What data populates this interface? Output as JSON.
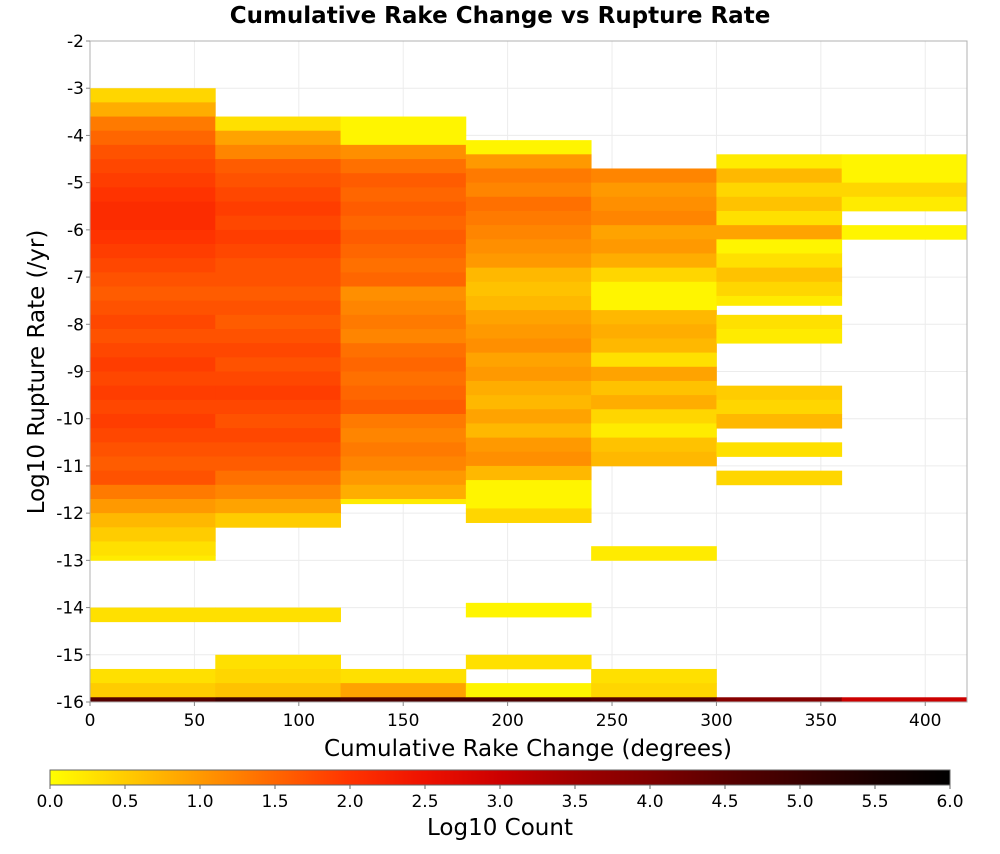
{
  "chart_data": {
    "type": "heatmap",
    "title": "Cumulative Rake Change vs Rupture Rate",
    "xlabel": "Cumulative Rake Change (degrees)",
    "ylabel": "Log10 Rupture Rate (/yr)",
    "xlim": [
      0,
      420
    ],
    "ylim": [
      -16,
      -2
    ],
    "x_ticks": [
      "0",
      "50",
      "100",
      "150",
      "200",
      "250",
      "300",
      "350",
      "400"
    ],
    "y_ticks": [
      "-2",
      "-3",
      "-4",
      "-5",
      "-6",
      "-7",
      "-8",
      "-9",
      "-10",
      "-11",
      "-12",
      "-13",
      "-14",
      "-15",
      "-16"
    ],
    "grid": true,
    "x_bin_width": 60,
    "y_bin_height": 0.29,
    "colorbar": {
      "label": "Log10 Count",
      "range": [
        0,
        6
      ],
      "ticks": [
        "0.0",
        "0.5",
        "1.0",
        "1.5",
        "2.0",
        "2.5",
        "3.0",
        "3.5",
        "4.0",
        "4.5",
        "5.0",
        "5.5",
        "6.0"
      ],
      "stops": [
        "#ffff00",
        "#ffcc00",
        "#ff9900",
        "#ff6600",
        "#ff3300",
        "#ee1100",
        "#cc0000",
        "#a00000",
        "#800000",
        "#5a0000",
        "#3a0000",
        "#1a0000",
        "#000000"
      ]
    },
    "columns": [
      {
        "x": [
          0,
          60
        ],
        "cells": [
          [
            -3.3,
            -3.0,
            0.4
          ],
          [
            -3.6,
            -3.3,
            0.8
          ],
          [
            -3.9,
            -3.6,
            1.3
          ],
          [
            -4.2,
            -3.9,
            1.5
          ],
          [
            -4.5,
            -4.2,
            1.7
          ],
          [
            -4.8,
            -4.5,
            1.8
          ],
          [
            -5.1,
            -4.8,
            1.9
          ],
          [
            -5.4,
            -5.1,
            2.0
          ],
          [
            -5.7,
            -5.4,
            2.1
          ],
          [
            -6.0,
            -5.7,
            2.1
          ],
          [
            -6.3,
            -6.0,
            2.0
          ],
          [
            -6.6,
            -6.3,
            1.9
          ],
          [
            -6.9,
            -6.6,
            1.8
          ],
          [
            -7.2,
            -6.9,
            1.7
          ],
          [
            -7.5,
            -7.2,
            1.6
          ],
          [
            -7.8,
            -7.5,
            1.7
          ],
          [
            -8.1,
            -7.8,
            1.8
          ],
          [
            -8.4,
            -8.1,
            1.7
          ],
          [
            -8.7,
            -8.4,
            1.8
          ],
          [
            -9.0,
            -8.7,
            1.9
          ],
          [
            -9.3,
            -9.0,
            1.8
          ],
          [
            -9.6,
            -9.3,
            1.9
          ],
          [
            -9.9,
            -9.6,
            1.8
          ],
          [
            -10.2,
            -9.9,
            1.9
          ],
          [
            -10.5,
            -10.2,
            1.8
          ],
          [
            -10.8,
            -10.5,
            1.7
          ],
          [
            -11.1,
            -10.8,
            1.6
          ],
          [
            -11.4,
            -11.1,
            1.7
          ],
          [
            -11.7,
            -11.4,
            1.3
          ],
          [
            -12.0,
            -11.7,
            1.0
          ],
          [
            -12.3,
            -12.0,
            0.7
          ],
          [
            -12.6,
            -12.3,
            0.5
          ],
          [
            -12.9,
            -12.6,
            0.3
          ],
          [
            -13.0,
            -12.9,
            0.2
          ],
          [
            -14.3,
            -14.0,
            0.3
          ],
          [
            -15.6,
            -15.3,
            0.3
          ],
          [
            -15.9,
            -15.6,
            0.5
          ],
          [
            -16.0,
            -15.9,
            4.6
          ]
        ]
      },
      {
        "x": [
          60,
          120
        ],
        "cells": [
          [
            -3.9,
            -3.6,
            0.3
          ],
          [
            -4.2,
            -3.9,
            0.9
          ],
          [
            -4.5,
            -4.2,
            1.2
          ],
          [
            -4.8,
            -4.5,
            1.6
          ],
          [
            -5.1,
            -4.8,
            1.7
          ],
          [
            -5.4,
            -5.1,
            1.8
          ],
          [
            -5.7,
            -5.4,
            1.9
          ],
          [
            -6.0,
            -5.7,
            1.8
          ],
          [
            -6.3,
            -6.0,
            1.9
          ],
          [
            -6.6,
            -6.3,
            1.8
          ],
          [
            -6.9,
            -6.6,
            1.7
          ],
          [
            -7.2,
            -6.9,
            1.7
          ],
          [
            -7.5,
            -7.2,
            1.6
          ],
          [
            -7.8,
            -7.5,
            1.7
          ],
          [
            -8.1,
            -7.8,
            1.6
          ],
          [
            -8.4,
            -8.1,
            1.7
          ],
          [
            -8.7,
            -8.4,
            1.8
          ],
          [
            -9.0,
            -8.7,
            1.7
          ],
          [
            -9.3,
            -9.0,
            1.8
          ],
          [
            -9.6,
            -9.3,
            1.9
          ],
          [
            -9.9,
            -9.6,
            1.8
          ],
          [
            -10.2,
            -9.9,
            1.7
          ],
          [
            -10.5,
            -10.2,
            1.8
          ],
          [
            -10.8,
            -10.5,
            1.7
          ],
          [
            -11.1,
            -10.8,
            1.6
          ],
          [
            -11.4,
            -11.1,
            1.4
          ],
          [
            -11.7,
            -11.4,
            1.2
          ],
          [
            -12.0,
            -11.7,
            0.9
          ],
          [
            -12.3,
            -12.0,
            0.5
          ],
          [
            -14.3,
            -14.0,
            0.3
          ],
          [
            -15.3,
            -15.0,
            0.3
          ],
          [
            -15.6,
            -15.3,
            0.4
          ],
          [
            -15.9,
            -15.6,
            0.6
          ],
          [
            -16.0,
            -15.9,
            4.9
          ]
        ]
      },
      {
        "x": [
          120,
          180
        ],
        "cells": [
          [
            -3.9,
            -3.6,
            0.1
          ],
          [
            -4.2,
            -3.9,
            0.1
          ],
          [
            -4.5,
            -4.2,
            1.1
          ],
          [
            -4.8,
            -4.5,
            1.4
          ],
          [
            -5.1,
            -4.8,
            1.6
          ],
          [
            -5.4,
            -5.1,
            1.5
          ],
          [
            -5.7,
            -5.4,
            1.6
          ],
          [
            -6.0,
            -5.7,
            1.5
          ],
          [
            -6.3,
            -6.0,
            1.6
          ],
          [
            -6.6,
            -6.3,
            1.5
          ],
          [
            -6.9,
            -6.6,
            1.4
          ],
          [
            -7.2,
            -6.9,
            1.5
          ],
          [
            -7.5,
            -7.2,
            1.1
          ],
          [
            -7.8,
            -7.5,
            1.2
          ],
          [
            -8.1,
            -7.8,
            1.3
          ],
          [
            -8.4,
            -8.1,
            1.2
          ],
          [
            -8.7,
            -8.4,
            1.4
          ],
          [
            -9.0,
            -8.7,
            1.5
          ],
          [
            -9.3,
            -9.0,
            1.4
          ],
          [
            -9.6,
            -9.3,
            1.5
          ],
          [
            -9.9,
            -9.6,
            1.6
          ],
          [
            -10.2,
            -9.9,
            1.3
          ],
          [
            -10.5,
            -10.2,
            1.2
          ],
          [
            -10.8,
            -10.5,
            1.3
          ],
          [
            -11.1,
            -10.8,
            1.2
          ],
          [
            -11.4,
            -11.1,
            1.0
          ],
          [
            -11.7,
            -11.4,
            0.8
          ],
          [
            -11.8,
            -11.7,
            0.2
          ],
          [
            -15.6,
            -15.3,
            0.3
          ],
          [
            -15.9,
            -15.6,
            0.9
          ],
          [
            -16.0,
            -15.9,
            4.7
          ]
        ]
      },
      {
        "x": [
          180,
          240
        ],
        "cells": [
          [
            -4.4,
            -4.1,
            0.1
          ],
          [
            -4.7,
            -4.4,
            1.0
          ],
          [
            -5.0,
            -4.7,
            1.3
          ],
          [
            -5.3,
            -5.0,
            1.2
          ],
          [
            -5.6,
            -5.3,
            1.4
          ],
          [
            -5.9,
            -5.6,
            1.3
          ],
          [
            -6.2,
            -5.9,
            1.2
          ],
          [
            -6.5,
            -6.2,
            1.1
          ],
          [
            -6.8,
            -6.5,
            1.0
          ],
          [
            -7.1,
            -6.8,
            0.7
          ],
          [
            -7.4,
            -7.1,
            0.6
          ],
          [
            -7.7,
            -7.4,
            0.7
          ],
          [
            -8.0,
            -7.7,
            0.9
          ],
          [
            -8.3,
            -8.0,
            1.0
          ],
          [
            -8.6,
            -8.3,
            1.1
          ],
          [
            -8.9,
            -8.6,
            0.9
          ],
          [
            -9.2,
            -8.9,
            1.0
          ],
          [
            -9.5,
            -9.2,
            0.8
          ],
          [
            -9.8,
            -9.5,
            0.7
          ],
          [
            -10.1,
            -9.8,
            0.9
          ],
          [
            -10.4,
            -10.1,
            0.7
          ],
          [
            -10.7,
            -10.4,
            1.0
          ],
          [
            -11.0,
            -10.7,
            1.1
          ],
          [
            -11.3,
            -11.0,
            0.7
          ],
          [
            -11.6,
            -11.3,
            0.1
          ],
          [
            -11.9,
            -11.6,
            0.1
          ],
          [
            -12.2,
            -11.9,
            0.4
          ],
          [
            -14.2,
            -13.9,
            0.1
          ],
          [
            -15.3,
            -15.0,
            0.3
          ],
          [
            -15.9,
            -15.6,
            0.1
          ],
          [
            -16.0,
            -15.9,
            4.7
          ]
        ]
      },
      {
        "x": [
          240,
          300
        ],
        "cells": [
          [
            -5.0,
            -4.7,
            1.2
          ],
          [
            -5.3,
            -5.0,
            1.0
          ],
          [
            -5.6,
            -5.3,
            1.1
          ],
          [
            -5.9,
            -5.6,
            1.2
          ],
          [
            -6.2,
            -5.9,
            0.9
          ],
          [
            -6.5,
            -6.2,
            1.0
          ],
          [
            -6.8,
            -6.5,
            0.8
          ],
          [
            -7.1,
            -6.8,
            0.4
          ],
          [
            -7.4,
            -7.1,
            0.1
          ],
          [
            -7.7,
            -7.4,
            0.1
          ],
          [
            -8.0,
            -7.7,
            0.7
          ],
          [
            -8.3,
            -8.0,
            0.8
          ],
          [
            -8.6,
            -8.3,
            0.7
          ],
          [
            -8.9,
            -8.6,
            0.3
          ],
          [
            -9.2,
            -8.9,
            0.9
          ],
          [
            -9.5,
            -9.2,
            0.6
          ],
          [
            -9.8,
            -9.5,
            0.8
          ],
          [
            -10.1,
            -9.8,
            0.4
          ],
          [
            -10.4,
            -10.1,
            0.2
          ],
          [
            -10.7,
            -10.4,
            0.6
          ],
          [
            -11.0,
            -10.7,
            0.7
          ],
          [
            -13.0,
            -12.7,
            0.2
          ],
          [
            -15.6,
            -15.3,
            0.3
          ],
          [
            -15.9,
            -15.6,
            0.4
          ],
          [
            -16.0,
            -15.9,
            4.6
          ]
        ]
      },
      {
        "x": [
          300,
          360
        ],
        "cells": [
          [
            -4.7,
            -4.4,
            0.2
          ],
          [
            -5.0,
            -4.7,
            0.7
          ],
          [
            -5.3,
            -5.0,
            0.4
          ],
          [
            -5.6,
            -5.3,
            0.6
          ],
          [
            -5.9,
            -5.6,
            0.3
          ],
          [
            -6.2,
            -5.9,
            0.9
          ],
          [
            -6.5,
            -6.2,
            0.1
          ],
          [
            -6.8,
            -6.5,
            0.3
          ],
          [
            -7.1,
            -6.8,
            0.6
          ],
          [
            -7.4,
            -7.1,
            0.4
          ],
          [
            -7.6,
            -7.4,
            0.2
          ],
          [
            -8.1,
            -7.8,
            0.3
          ],
          [
            -8.4,
            -8.1,
            0.2
          ],
          [
            -9.6,
            -9.3,
            0.5
          ],
          [
            -9.9,
            -9.6,
            0.4
          ],
          [
            -10.2,
            -9.9,
            0.7
          ],
          [
            -10.8,
            -10.5,
            0.3
          ],
          [
            -11.4,
            -11.1,
            0.4
          ],
          [
            -16.0,
            -15.9,
            3.9
          ]
        ]
      },
      {
        "x": [
          360,
          420
        ],
        "cells": [
          [
            -4.7,
            -4.4,
            0.1
          ],
          [
            -5.0,
            -4.7,
            0.1
          ],
          [
            -5.3,
            -5.0,
            0.4
          ],
          [
            -5.6,
            -5.3,
            0.2
          ],
          [
            -6.2,
            -5.9,
            0.1
          ],
          [
            -16.0,
            -15.9,
            3.0
          ]
        ]
      }
    ]
  }
}
